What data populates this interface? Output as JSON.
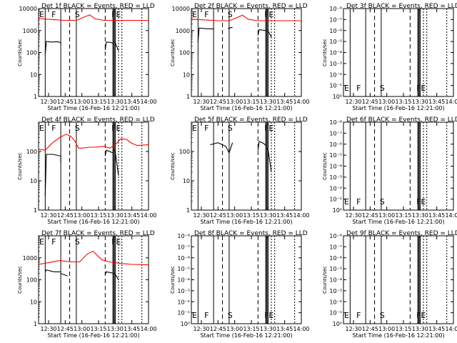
{
  "x_tick_labels": [
    "12:30",
    "12:45",
    "13:00",
    "13:15",
    "13:30",
    "13:45",
    "14:00"
  ],
  "xlabel": "Start Time (16-Feb-16 12:21:00)",
  "ylabel": "Counts/sec",
  "colors": {
    "events": "#000000",
    "lld": "#ff0000"
  },
  "chart_data": [
    {
      "type": "line",
      "title": "Det 1f BLACK = Events, RED = LLD",
      "log_scale": true,
      "xlim": [
        "12:21",
        "14:00"
      ],
      "ylim": [
        1,
        10000
      ],
      "y_tick_labels": [
        "1",
        "10",
        "100",
        "1000",
        "10000"
      ],
      "markers": [
        "E",
        "F",
        "S",
        "F",
        "E"
      ],
      "series": [
        {
          "name": "RED = LLD",
          "color": "#ff0000",
          "segments": [
            {
              "x": [
                "12:21",
                "12:35",
                "12:45",
                "12:55",
                "13:00",
                "13:07",
                "13:12",
                "13:20",
                "13:30",
                "13:35",
                "13:45",
                "14:00"
              ],
              "y": [
                3500,
                3100,
                2900,
                2900,
                3700,
                5200,
                3400,
                2900,
                2900,
                2900,
                2900,
                2900
              ]
            }
          ]
        },
        {
          "name": "BLACK = Events",
          "color": "#000000",
          "segments": [
            {
              "x": [
                "12:27",
                "12:28",
                "12:32",
                "12:38",
                "12:41",
                "12:41"
              ],
              "y": [
                80,
                320,
                300,
                310,
                290,
                230
              ]
            },
            {
              "x": [
                "13:21",
                "13:22",
                "13:26",
                "13:28"
              ],
              "y": [
                130,
                300,
                290,
                260
              ]
            },
            {
              "x": [
                "13:29",
                "13:30",
                "13:33"
              ],
              "y": [
                300,
                280,
                120
              ]
            }
          ]
        }
      ]
    },
    {
      "type": "line",
      "title": "Det 2f BLACK = Events, RED = LLD",
      "log_scale": true,
      "xlim": [
        "12:21",
        "14:00"
      ],
      "ylim": [
        1,
        10000
      ],
      "y_tick_labels": [
        "1",
        "10",
        "100",
        "1000",
        "10000"
      ],
      "markers": [
        "E",
        "F",
        "S",
        "F",
        "E"
      ],
      "series": [
        {
          "name": "RED = LLD",
          "color": "#ff0000",
          "segments": [
            {
              "x": [
                "12:21",
                "12:35",
                "12:45",
                "12:55",
                "13:00",
                "13:07",
                "13:12",
                "13:20",
                "13:30",
                "13:35",
                "13:45",
                "14:00"
              ],
              "y": [
                3300,
                3000,
                2800,
                2800,
                3500,
                5000,
                3300,
                2800,
                2800,
                2800,
                2800,
                2800
              ]
            }
          ]
        },
        {
          "name": "BLACK = Events",
          "color": "#000000",
          "segments": [
            {
              "x": [
                "12:27",
                "12:28",
                "12:35",
                "12:41",
                "12:41"
              ],
              "y": [
                300,
                1300,
                1200,
                1200,
                1100
              ]
            },
            {
              "x": [
                "12:54",
                "12:55",
                "12:58"
              ],
              "y": [
                1200,
                1300,
                1400
              ]
            },
            {
              "x": [
                "13:21",
                "13:22",
                "13:28"
              ],
              "y": [
                600,
                1100,
                1000
              ]
            },
            {
              "x": [
                "13:29",
                "13:30",
                "13:33"
              ],
              "y": [
                1100,
                1000,
                500
              ]
            }
          ]
        }
      ]
    },
    {
      "type": "line",
      "title": "Det 3f BLACK = Events, RED = LLD",
      "log_scale": true,
      "xlim": [
        "12:21",
        "14:00"
      ],
      "ylim": [
        1,
        1e-08
      ],
      "y_tick_labels": [
        "10⁰",
        "10⁻¹",
        "10⁻²",
        "10⁻³",
        "10⁻⁴",
        "10⁻⁵",
        "10⁻⁶",
        "10⁻⁷",
        "10⁻⁸"
      ],
      "markers": [
        "E",
        "F",
        "S",
        "F",
        "E"
      ],
      "series": []
    },
    {
      "type": "line",
      "title": "Det 4f BLACK = Events, RED = LLD",
      "log_scale": true,
      "xlim": [
        "12:21",
        "14:00"
      ],
      "ylim": [
        1,
        1000
      ],
      "y_tick_labels": [
        "1",
        "10",
        "100"
      ],
      "markers": [
        "E",
        "F",
        "S",
        "F",
        "E"
      ],
      "series": [
        {
          "name": "RED = LLD",
          "color": "#ff0000",
          "segments": [
            {
              "x": [
                "12:21",
                "12:27",
                "12:33",
                "12:40",
                "12:46",
                "12:50",
                "12:54",
                "12:57",
                "13:00",
                "13:07",
                "13:12",
                "13:20",
                "13:25",
                "13:30",
                "13:35",
                "13:40",
                "13:45",
                "13:50",
                "14:00"
              ],
              "y": [
                120,
                110,
                190,
                300,
                390,
                330,
                220,
                130,
                130,
                140,
                140,
                150,
                130,
                170,
                270,
                260,
                190,
                160,
                170
              ]
            }
          ]
        },
        {
          "name": "BLACK = Events",
          "color": "#000000",
          "segments": [
            {
              "x": [
                "12:27",
                "12:28",
                "12:34",
                "12:41",
                "12:41"
              ],
              "y": [
                3,
                80,
                80,
                70,
                40
              ]
            },
            {
              "x": [
                "13:21",
                "13:22",
                "13:28"
              ],
              "y": [
                70,
                110,
                90
              ]
            },
            {
              "x": [
                "13:29",
                "13:30",
                "13:33"
              ],
              "y": [
                120,
                100,
                15
              ]
            }
          ]
        }
      ]
    },
    {
      "type": "line",
      "title": "Det 5f BLACK = Events, RED = LLD",
      "log_scale": true,
      "xlim": [
        "12:21",
        "14:00"
      ],
      "ylim": [
        1,
        1000
      ],
      "y_tick_labels": [
        "1",
        "10",
        "100"
      ],
      "markers": [
        "E",
        "F",
        "S",
        "F",
        "E"
      ],
      "series": [
        {
          "name": "BLACK = Events",
          "color": "#000000",
          "segments": [
            {
              "x": [
                "12:38",
                "12:45",
                "12:52",
                "12:55",
                "12:58"
              ],
              "y": [
                170,
                200,
                150,
                90,
                200
              ]
            },
            {
              "x": [
                "13:21",
                "13:22",
                "13:26",
                "13:28"
              ],
              "y": [
                110,
                220,
                190,
                160
              ]
            },
            {
              "x": [
                "13:29",
                "13:30",
                "13:33"
              ],
              "y": [
                130,
                120,
                20
              ]
            }
          ]
        }
      ]
    },
    {
      "type": "line",
      "title": "Det 6f BLACK = Events, RED = LLD",
      "log_scale": true,
      "xlim": [
        "12:21",
        "14:00"
      ],
      "ylim": [
        1,
        1e-08
      ],
      "y_tick_labels": [
        "10⁰",
        "10⁻¹",
        "10⁻²",
        "10⁻³",
        "10⁻⁴",
        "10⁻⁵",
        "10⁻⁶",
        "10⁻⁷",
        "10⁻⁸"
      ],
      "markers": [
        "E",
        "F",
        "S",
        "F",
        "E"
      ],
      "series": []
    },
    {
      "type": "line",
      "title": "Det 7f BLACK = Events, RED = LLD",
      "log_scale": true,
      "xlim": [
        "12:21",
        "14:00"
      ],
      "ylim": [
        1,
        10000
      ],
      "y_tick_labels": [
        "1",
        "10",
        "100",
        "1000"
      ],
      "markers": [
        "E",
        "F",
        "S",
        "F",
        "E"
      ],
      "series": [
        {
          "name": "RED = LLD",
          "color": "#ff0000",
          "segments": [
            {
              "x": [
                "12:21",
                "12:30",
                "12:40",
                "12:50",
                "12:58",
                "13:05",
                "13:10",
                "13:18",
                "13:25",
                "13:35",
                "13:45",
                "14:00"
              ],
              "y": [
                500,
                600,
                750,
                650,
                650,
                1500,
                2000,
                800,
                650,
                550,
                500,
                480
              ]
            }
          ]
        },
        {
          "name": "BLACK = Events",
          "color": "#000000",
          "segments": [
            {
              "x": [
                "12:27",
                "12:28",
                "12:35",
                "12:41"
              ],
              "y": [
                230,
                280,
                230,
                230
              ]
            },
            {
              "x": [
                "12:41",
                "12:44",
                "12:47"
              ],
              "y": [
                190,
                170,
                150
              ]
            },
            {
              "x": [
                "13:21",
                "13:22",
                "13:28"
              ],
              "y": [
                170,
                230,
                200
              ]
            },
            {
              "x": [
                "13:29",
                "13:30",
                "13:33"
              ],
              "y": [
                200,
                180,
                100
              ]
            }
          ]
        }
      ]
    },
    {
      "type": "line",
      "title": "Det 8f BLACK = Events, RED = LLD",
      "log_scale": true,
      "xlim": [
        "12:21",
        "14:00"
      ],
      "ylim": [
        1,
        1e-08
      ],
      "y_tick_labels": [
        "10⁰",
        "10⁻¹",
        "10⁻²",
        "10⁻³",
        "10⁻⁴",
        "10⁻⁵",
        "10⁻⁶",
        "10⁻⁷",
        "10⁻⁸"
      ],
      "markers": [
        "E",
        "F",
        "S",
        "F",
        "E"
      ],
      "series": []
    },
    {
      "type": "line",
      "title": "Det 9f BLACK = Events, RED = LLD",
      "log_scale": true,
      "xlim": [
        "12:21",
        "14:00"
      ],
      "ylim": [
        1,
        1e-08
      ],
      "y_tick_labels": [
        "10⁰",
        "10⁻¹",
        "10⁻²",
        "10⁻³",
        "10⁻⁴",
        "10⁻⁵",
        "10⁻⁶",
        "10⁻⁷",
        "10⁻⁸"
      ],
      "markers": [
        "E",
        "F",
        "S",
        "F",
        "E"
      ],
      "series": []
    }
  ]
}
